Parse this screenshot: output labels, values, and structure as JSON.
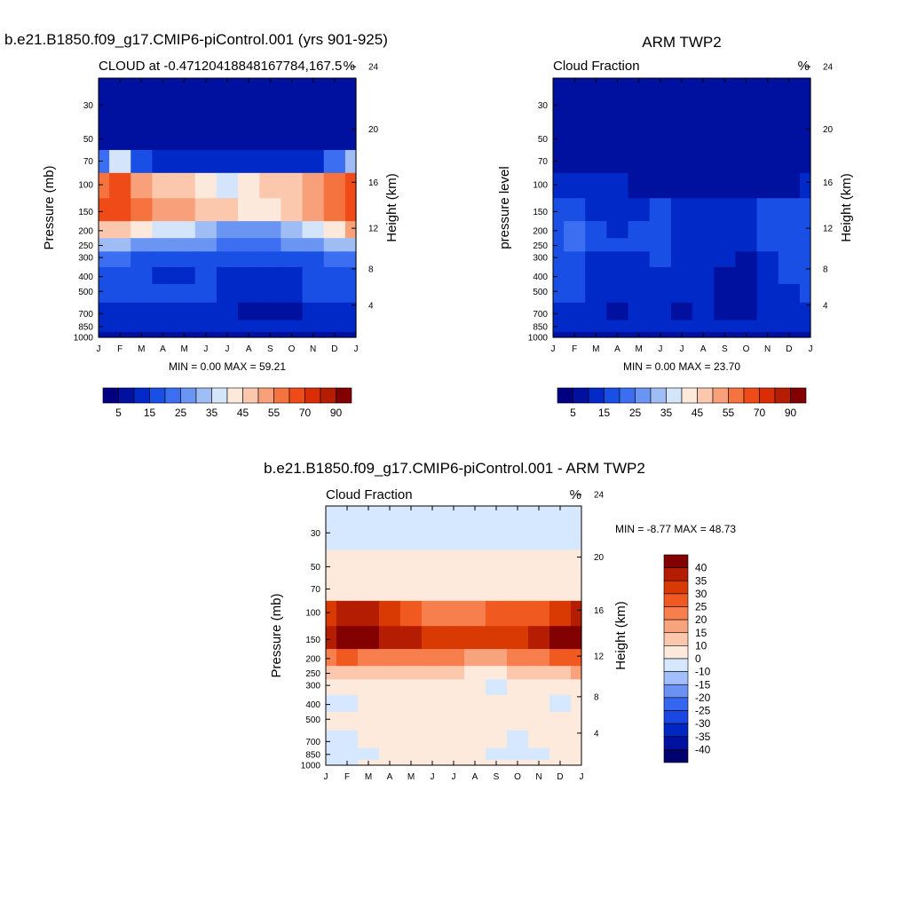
{
  "colors": {
    "abs_scale": [
      "#000080",
      "#00109f",
      "#0029c7",
      "#1a4fe6",
      "#3b6ef0",
      "#6b95f2",
      "#9fbcf5",
      "#d3e4fb",
      "#fde9dc",
      "#fbc8ae",
      "#f8a07a",
      "#f5733f",
      "#ef4b18",
      "#d92d05",
      "#b51d02",
      "#820000"
    ],
    "diff_scale": [
      "#00006e",
      "#00109f",
      "#0027c2",
      "#1a47e3",
      "#3466f0",
      "#6b92f2",
      "#a3beff",
      "#d6e8ff",
      "#fdeadc",
      "#fcc8ad",
      "#f9a37e",
      "#f77f4d",
      "#f05a21",
      "#d93a04",
      "#b51d02",
      "#820000"
    ]
  },
  "chart_data": [
    {
      "id": "model",
      "type": "heatmap",
      "title": "b.e21.B1850.f09_g17.CMIP6-piControl.001 (yrs 901-925)",
      "left_label": "CLOUD at -0.47120418848167784,167.5",
      "right_label": "%",
      "ylabel": "Pressure (mb)",
      "y2label": "Height (km)",
      "x_ticks": [
        "J",
        "F",
        "M",
        "A",
        "M",
        "J",
        "J",
        "A",
        "S",
        "O",
        "N",
        "D",
        "J"
      ],
      "y_ticks": [
        "30",
        "50",
        "70",
        "100",
        "150",
        "200",
        "250",
        "300",
        "400",
        "500",
        "700",
        "850",
        "1000"
      ],
      "y2_ticks": [
        "24",
        "20",
        "16",
        "12",
        "8",
        "4"
      ],
      "stats": "MIN =   0.00 MAX =  59.21",
      "min": 0.0,
      "max": 59.21,
      "colorbar_labels": [
        "5",
        "15",
        "25",
        "35",
        "45",
        "55",
        "70",
        "90"
      ],
      "rows": [
        [
          1,
          1,
          1,
          1,
          1,
          1,
          1,
          1,
          1,
          1,
          1,
          1,
          1
        ],
        [
          1,
          1,
          1,
          1,
          1,
          1,
          1,
          1,
          1,
          1,
          1,
          1,
          1
        ],
        [
          4,
          7,
          3,
          2,
          2,
          2,
          2,
          2,
          2,
          2,
          2,
          4,
          6
        ],
        [
          11,
          12,
          10,
          9,
          9,
          8,
          7,
          8,
          9,
          9,
          10,
          11,
          12
        ],
        [
          12,
          12,
          11,
          10,
          10,
          9,
          9,
          8,
          8,
          9,
          10,
          11,
          12
        ],
        [
          9,
          9,
          8,
          7,
          7,
          6,
          5,
          5,
          5,
          6,
          7,
          8,
          10
        ],
        [
          6,
          6,
          5,
          5,
          5,
          5,
          4,
          4,
          4,
          5,
          5,
          6,
          6
        ],
        [
          4,
          4,
          3,
          3,
          3,
          3,
          3,
          3,
          3,
          3,
          3,
          4,
          4
        ],
        [
          3,
          3,
          3,
          2,
          2,
          3,
          2,
          2,
          2,
          2,
          3,
          3,
          3
        ],
        [
          3,
          3,
          3,
          3,
          3,
          3,
          2,
          2,
          2,
          2,
          3,
          3,
          3
        ],
        [
          2,
          2,
          2,
          2,
          2,
          2,
          2,
          1,
          1,
          1,
          2,
          2,
          2
        ],
        [
          2,
          2,
          2,
          2,
          2,
          2,
          2,
          2,
          2,
          2,
          2,
          2,
          2
        ],
        [
          1,
          1,
          1,
          1,
          1,
          1,
          1,
          1,
          1,
          1,
          1,
          1,
          1
        ]
      ]
    },
    {
      "id": "obs",
      "type": "heatmap",
      "title": "ARM TWP2",
      "left_label": "Cloud Fraction",
      "right_label": "%",
      "ylabel": "pressure level",
      "y2label": "Height (km)",
      "x_ticks": [
        "J",
        "F",
        "M",
        "A",
        "M",
        "J",
        "J",
        "A",
        "S",
        "O",
        "N",
        "D",
        "J"
      ],
      "y_ticks": [
        "30",
        "50",
        "70",
        "100",
        "150",
        "200",
        "250",
        "300",
        "400",
        "500",
        "700",
        "850",
        "1000"
      ],
      "y2_ticks": [
        "24",
        "20",
        "16",
        "12",
        "8",
        "4"
      ],
      "stats": "MIN =   0.00 MAX =  23.70",
      "min": 0.0,
      "max": 23.7,
      "colorbar_labels": [
        "5",
        "15",
        "25",
        "35",
        "45",
        "55",
        "70",
        "90"
      ],
      "rows": [
        [
          1,
          1,
          1,
          1,
          1,
          1,
          1,
          1,
          1,
          1,
          1,
          1,
          1
        ],
        [
          1,
          1,
          1,
          1,
          1,
          1,
          1,
          1,
          1,
          1,
          1,
          1,
          1
        ],
        [
          1,
          1,
          1,
          1,
          1,
          1,
          1,
          1,
          1,
          1,
          1,
          1,
          1
        ],
        [
          2,
          2,
          2,
          2,
          1,
          1,
          1,
          1,
          1,
          1,
          1,
          1,
          2
        ],
        [
          3,
          3,
          2,
          2,
          2,
          3,
          2,
          2,
          2,
          2,
          3,
          3,
          3
        ],
        [
          3,
          4,
          3,
          2,
          3,
          3,
          2,
          2,
          2,
          2,
          3,
          3,
          3
        ],
        [
          3,
          4,
          3,
          3,
          3,
          3,
          2,
          2,
          2,
          2,
          3,
          3,
          3
        ],
        [
          3,
          3,
          2,
          2,
          2,
          3,
          2,
          2,
          2,
          1,
          2,
          3,
          3
        ],
        [
          3,
          3,
          2,
          2,
          2,
          2,
          2,
          2,
          1,
          1,
          2,
          3,
          3
        ],
        [
          3,
          3,
          2,
          2,
          2,
          2,
          2,
          2,
          1,
          1,
          2,
          2,
          3
        ],
        [
          2,
          2,
          2,
          1,
          2,
          2,
          1,
          2,
          1,
          1,
          2,
          2,
          2
        ],
        [
          2,
          2,
          2,
          2,
          2,
          2,
          2,
          2,
          2,
          2,
          2,
          2,
          2
        ],
        [
          1,
          1,
          1,
          1,
          1,
          1,
          1,
          1,
          1,
          1,
          1,
          1,
          1
        ]
      ]
    },
    {
      "id": "diff",
      "type": "heatmap",
      "title": "b.e21.B1850.f09_g17.CMIP6-piControl.001 - ARM TWP2",
      "left_label": "Cloud Fraction",
      "right_label": "%",
      "ylabel": "Pressure (mb)",
      "y2label": "Height (km)",
      "x_ticks": [
        "J",
        "F",
        "M",
        "A",
        "M",
        "J",
        "J",
        "A",
        "S",
        "O",
        "N",
        "D",
        "J"
      ],
      "y_ticks": [
        "30",
        "50",
        "70",
        "100",
        "150",
        "200",
        "250",
        "300",
        "400",
        "500",
        "700",
        "850",
        "1000"
      ],
      "y2_ticks": [
        "24",
        "20",
        "16",
        "12",
        "8",
        "4"
      ],
      "stats": "MIN =  -8.77 MAX =  48.73",
      "min": -8.77,
      "max": 48.73,
      "colorbar_labels": [
        "40",
        "35",
        "30",
        "25",
        "20",
        "15",
        "10",
        "0",
        "-10",
        "-15",
        "-20",
        "-25",
        "-30",
        "-35",
        "-40"
      ],
      "rows": [
        [
          7,
          7,
          7,
          7,
          7,
          7,
          7,
          7,
          7,
          7,
          7,
          7,
          7
        ],
        [
          8,
          8,
          8,
          8,
          8,
          8,
          8,
          8,
          8,
          8,
          8,
          8,
          8
        ],
        [
          8,
          8,
          8,
          8,
          8,
          8,
          8,
          8,
          8,
          8,
          8,
          8,
          8
        ],
        [
          13,
          14,
          14,
          13,
          12,
          11,
          11,
          11,
          12,
          12,
          12,
          13,
          14
        ],
        [
          14,
          15,
          15,
          14,
          14,
          13,
          13,
          13,
          13,
          13,
          14,
          15,
          15
        ],
        [
          11,
          12,
          11,
          11,
          11,
          11,
          11,
          10,
          10,
          11,
          11,
          12,
          12
        ],
        [
          9,
          9,
          9,
          9,
          9,
          9,
          9,
          8,
          8,
          9,
          9,
          9,
          10
        ],
        [
          8,
          8,
          8,
          8,
          8,
          8,
          8,
          8,
          7,
          8,
          8,
          8,
          8
        ],
        [
          7,
          7,
          8,
          8,
          8,
          8,
          8,
          8,
          8,
          8,
          8,
          7,
          8
        ],
        [
          8,
          8,
          8,
          8,
          8,
          8,
          8,
          8,
          8,
          8,
          8,
          8,
          8
        ],
        [
          7,
          7,
          8,
          8,
          8,
          8,
          8,
          8,
          8,
          7,
          8,
          8,
          8
        ],
        [
          7,
          7,
          7,
          8,
          8,
          8,
          8,
          8,
          7,
          7,
          7,
          8,
          8
        ],
        [
          7,
          7,
          8,
          8,
          8,
          8,
          8,
          8,
          8,
          8,
          8,
          8,
          8
        ]
      ]
    }
  ]
}
